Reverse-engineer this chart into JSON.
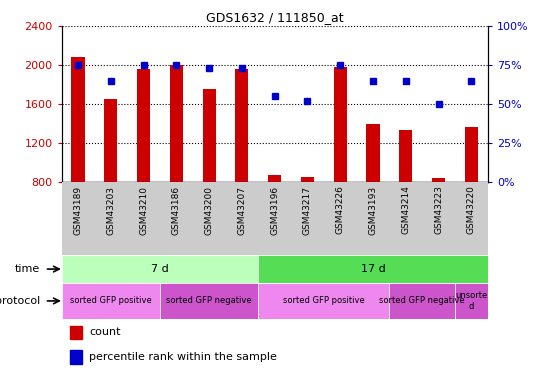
{
  "title": "GDS1632 / 111850_at",
  "samples": [
    "GSM43189",
    "GSM43203",
    "GSM43210",
    "GSM43186",
    "GSM43200",
    "GSM43207",
    "GSM43196",
    "GSM43217",
    "GSM43226",
    "GSM43193",
    "GSM43214",
    "GSM43223",
    "GSM43220"
  ],
  "counts": [
    2080,
    1650,
    1960,
    2000,
    1750,
    1960,
    870,
    850,
    1980,
    1390,
    1330,
    840,
    1360
  ],
  "percentile_ranks": [
    75,
    65,
    75,
    75,
    73,
    73,
    55,
    52,
    75,
    65,
    65,
    50,
    65
  ],
  "bar_color": "#cc0000",
  "dot_color": "#0000cc",
  "ylim_left": [
    800,
    2400
  ],
  "ylim_right": [
    0,
    100
  ],
  "yticks_left": [
    800,
    1200,
    1600,
    2000,
    2400
  ],
  "yticks_right": [
    0,
    25,
    50,
    75,
    100
  ],
  "time_groups": [
    {
      "label": "7 d",
      "start": 0,
      "end": 5,
      "color": "#bbffbb"
    },
    {
      "label": "17 d",
      "start": 6,
      "end": 12,
      "color": "#55dd55"
    }
  ],
  "protocol_groups": [
    {
      "label": "sorted GFP positive",
      "start": 0,
      "end": 2,
      "color": "#ee88ee"
    },
    {
      "label": "sorted GFP negative",
      "start": 3,
      "end": 5,
      "color": "#cc55cc"
    },
    {
      "label": "sorted GFP positive",
      "start": 6,
      "end": 9,
      "color": "#ee88ee"
    },
    {
      "label": "sorted GFP negative",
      "start": 10,
      "end": 11,
      "color": "#cc55cc"
    },
    {
      "label": "unsorte\nd",
      "start": 12,
      "end": 12,
      "color": "#cc55cc"
    }
  ],
  "sample_bg_color": "#cccccc",
  "left_label_color": "#cc0000",
  "right_label_color": "#0000cc"
}
